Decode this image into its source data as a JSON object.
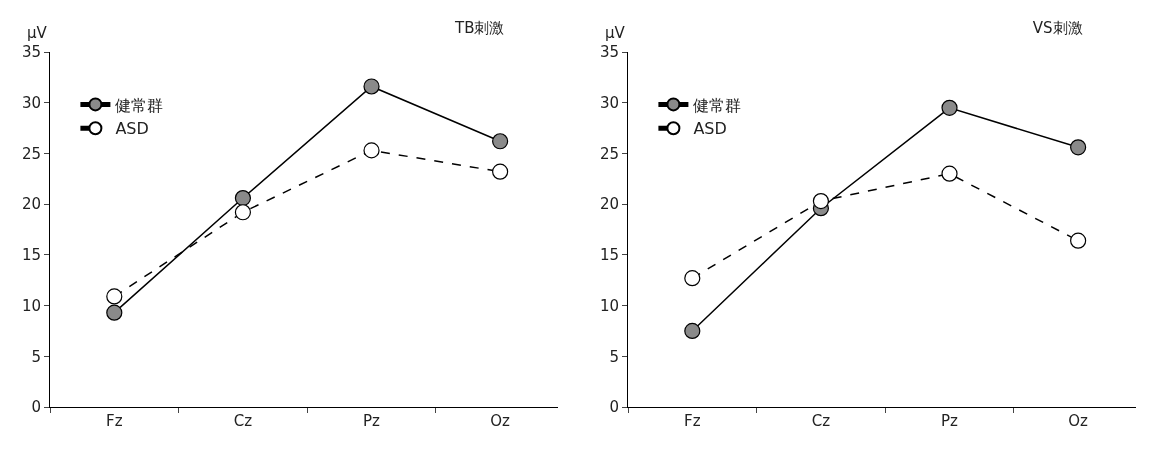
{
  "chart_data": [
    {
      "type": "line",
      "title": "TB刺激",
      "ylabel": "μV",
      "categories": [
        "Fz",
        "Cz",
        "Pz",
        "Oz"
      ],
      "ylim": [
        0,
        35
      ],
      "yticks": [
        0,
        5,
        10,
        15,
        20,
        25,
        30,
        35
      ],
      "grid": false,
      "legend": "top left",
      "marker": "circle",
      "series": [
        {
          "name": "健常群",
          "color": "#8a8a8a",
          "line_style": "solid",
          "values": [
            9.3,
            20.6,
            31.6,
            26.2
          ]
        },
        {
          "name": "ASD",
          "color": "#ffffff",
          "line_style": "dashed",
          "values": [
            10.9,
            19.2,
            25.3,
            23.2
          ]
        }
      ]
    },
    {
      "type": "line",
      "title": "VS刺激",
      "ylabel": "μV",
      "categories": [
        "Fz",
        "Cz",
        "Pz",
        "Oz"
      ],
      "ylim": [
        0,
        35
      ],
      "yticks": [
        0,
        5,
        10,
        15,
        20,
        25,
        30,
        35
      ],
      "grid": false,
      "legend": "top left",
      "marker": "circle",
      "series": [
        {
          "name": "健常群",
          "color": "#8a8a8a",
          "line_style": "solid",
          "values": [
            7.5,
            19.6,
            29.5,
            25.6
          ]
        },
        {
          "name": "ASD",
          "color": "#ffffff",
          "line_style": "dashed",
          "values": [
            12.7,
            20.3,
            23.0,
            16.4
          ]
        }
      ]
    }
  ]
}
